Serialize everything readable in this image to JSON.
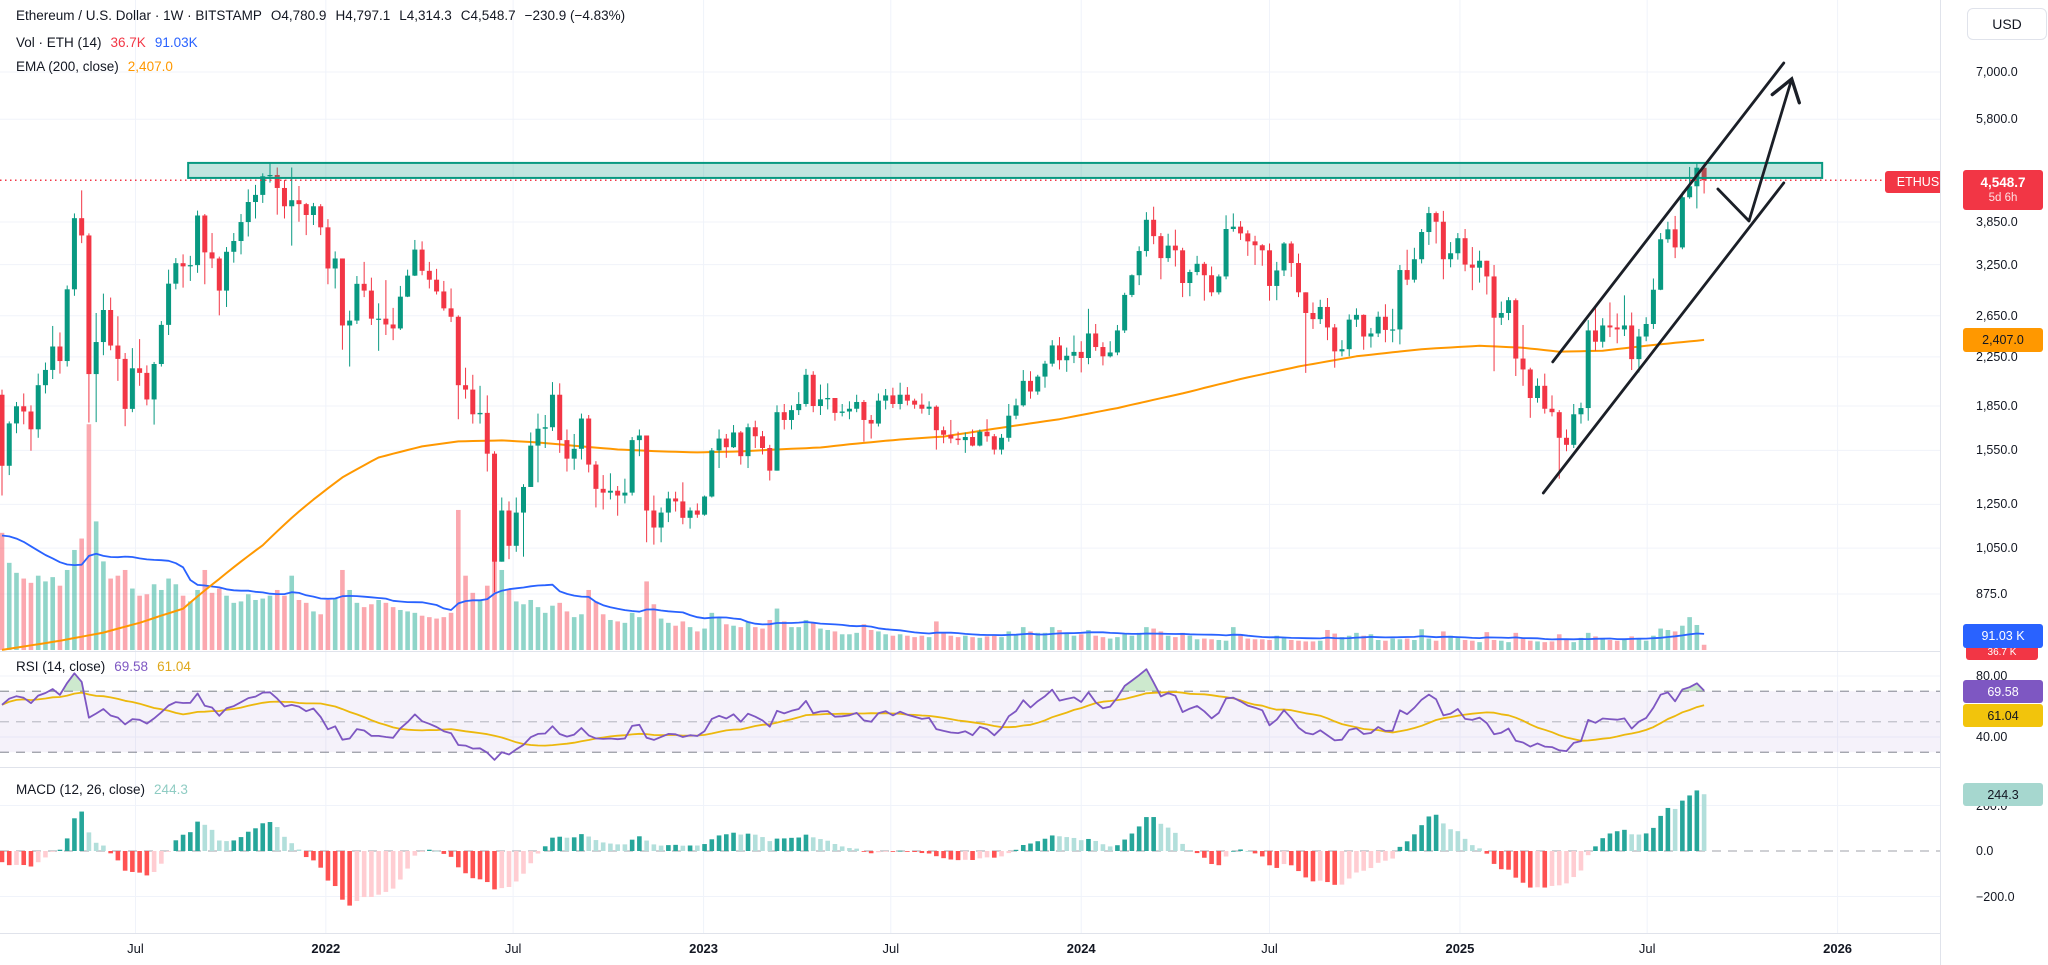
{
  "header": {
    "title": "Ethereum / U.S. Dollar",
    "interval": "1W",
    "exchange": "BITSTAMP",
    "sep": "·",
    "ohlc": {
      "o_label": "O",
      "o": "4,780.9",
      "h_label": "H",
      "h": "4,797.1",
      "l_label": "L",
      "l": "4,314.3",
      "c_label": "C",
      "c": "4,548.7"
    },
    "change": "−230.9 (−4.83%)"
  },
  "indicators": {
    "volume": {
      "label": "Vol · ETH (14)",
      "value": "36.7K",
      "ma": "91.03K"
    },
    "ema": {
      "label": "EMA (200, close)",
      "value": "2,407.0"
    },
    "rsi": {
      "label": "RSI (14, close)",
      "value": "69.58",
      "ma_value": "61.04"
    },
    "macd": {
      "label": "MACD (12, 26, close)",
      "value": "244.3"
    }
  },
  "axis": {
    "currency": "USD",
    "price_badge": {
      "symbol": "ETHUSD",
      "price": "4,548.7",
      "countdown": "5d 6h"
    },
    "ema_badge": "2,407.0",
    "vol_ma_badge": "91.03 K",
    "vol_badge": "36.7 K",
    "rsi_badge": "69.58",
    "rsi_ma_badge": "61.04",
    "macd_badge": "244.3",
    "price_ticks": [
      {
        "label": "7,000.0",
        "value": 7000
      },
      {
        "label": "5,800.0",
        "value": 5800
      },
      {
        "label": "3,850.0",
        "value": 3850
      },
      {
        "label": "3,250.0",
        "value": 3250
      },
      {
        "label": "2,650.0",
        "value": 2650
      },
      {
        "label": "2,250.0",
        "value": 2250
      },
      {
        "label": "1,850.0",
        "value": 1850
      },
      {
        "label": "1,550.0",
        "value": 1550
      },
      {
        "label": "1,250.0",
        "value": 1250
      },
      {
        "label": "1,050.0",
        "value": 1050
      },
      {
        "label": "875.0",
        "value": 875
      }
    ],
    "rsi_ticks": [
      {
        "label": "80.00",
        "value": 80
      },
      {
        "label": "40.00",
        "value": 40
      }
    ],
    "macd_ticks": [
      {
        "label": "200.0",
        "value": 200
      },
      {
        "label": "0.0",
        "value": 0
      },
      {
        "label": "−200.0",
        "value": -200
      }
    ],
    "time_ticks": [
      {
        "label": "Jul",
        "week": 18.43,
        "major": false
      },
      {
        "label": "2022",
        "week": 44.71,
        "major": true
      },
      {
        "label": "Jul",
        "week": 70.57,
        "major": false
      },
      {
        "label": "2023",
        "week": 96.86,
        "major": true
      },
      {
        "label": "Jul",
        "week": 122.71,
        "major": false
      },
      {
        "label": "2024",
        "week": 149.0,
        "major": true
      },
      {
        "label": "Jul",
        "week": 175.0,
        "major": false
      },
      {
        "label": "2025",
        "week": 201.29,
        "major": true
      },
      {
        "label": "Jul",
        "week": 227.14,
        "major": false
      },
      {
        "label": "2026",
        "week": 253.43,
        "major": true
      }
    ]
  },
  "palette": {
    "up": "#089981",
    "down": "#f23645",
    "vol_up": "rgba(34,171,148,0.5)",
    "vol_down": "rgba(247,82,95,0.5)",
    "ema": "#ff9800",
    "vol_ma": "#2962ff",
    "rsi": "#7e57c2",
    "rsi_ma": "#ecb80d",
    "rsi_band": "rgba(126,87,194,0.08)",
    "rsi_overbought_fill": "rgba(76,175,80,0.28)",
    "macd_pos_grow": "#26a69a",
    "macd_pos_fall": "#b2dfdb",
    "macd_neg_fall": "#ff5252",
    "macd_neg_grow": "#ffcdd2",
    "box_border": "#089981",
    "box_fill": "rgba(8,153,129,0.25)",
    "drawing": "#1b1f27",
    "grid": "#f0f3fa",
    "separator": "#e0e3eb",
    "dashed_level": "#80838e",
    "text": "#131722",
    "price_line": "#f23645"
  },
  "chart_data": {
    "type": "candlestick",
    "title": "Ethereum / U.S. Dollar · 1W · BITSTAMP",
    "symbol": "ETHUSD",
    "timeframe": "1W",
    "start_week": "2021-02-22",
    "weeks": 236,
    "legend_position": "top-left",
    "grid": true,
    "price_scale": "log",
    "price_axis_visible_range": [
      700,
      7400
    ],
    "panes": [
      "price+volume",
      "rsi",
      "macd"
    ],
    "first_open": 1935,
    "closes": [
      1458,
      1726,
      1848,
      1810,
      1686,
      2010,
      2136,
      2345,
      2213,
      2945,
      3910,
      3650,
      2101,
      2387,
      2712,
      2354,
      2232,
      1829,
      2150,
      2111,
      1899,
      2187,
      2556,
      3012,
      3268,
      3227,
      3243,
      3952,
      3412,
      3330,
      2930,
      3420,
      3570,
      3850,
      4170,
      4290,
      4620,
      4644,
      4410,
      4100,
      4200,
      4135,
      3960,
      4100,
      3770,
      3200,
      3330,
      2550,
      2600,
      3010,
      2930,
      2620,
      2620,
      2560,
      2520,
      2860,
      3110,
      3450,
      3170,
      3060,
      2920,
      2730,
      2640,
      2010,
      1975,
      1790,
      1800,
      1530,
      995,
      1220,
      1060,
      1210,
      1340,
      1580,
      1690,
      1700,
      1935,
      1615,
      1500,
      1560,
      1760,
      1465,
      1330,
      1310,
      1320,
      1295,
      1310,
      1615,
      1645,
      1220,
      1140,
      1210,
      1280,
      1265,
      1185,
      1220,
      1200,
      1290,
      1550,
      1625,
      1570,
      1665,
      1515,
      1700,
      1640,
      1565,
      1430,
      1805,
      1750,
      1820,
      1865,
      2095,
      1850,
      1900,
      1910,
      1800,
      1810,
      1830,
      1880,
      1750,
      1725,
      1890,
      1930,
      1865,
      1935,
      1890,
      1860,
      1830,
      1845,
      1680,
      1650,
      1625,
      1615,
      1635,
      1580,
      1670,
      1640,
      1555,
      1630,
      1780,
      1855,
      2045,
      1960,
      2080,
      2190,
      2355,
      2220,
      2260,
      2295,
      2240,
      2470,
      2340,
      2255,
      2290,
      2500,
      2880,
      3115,
      3430,
      3885,
      3640,
      3335,
      3505,
      3440,
      3020,
      3155,
      3260,
      3115,
      2910,
      3100,
      3745,
      3780,
      3680,
      3565,
      3510,
      3440,
      2985,
      3175,
      3535,
      3270,
      2910,
      2680,
      2615,
      2745,
      2530,
      2300,
      2320,
      2610,
      2660,
      2440,
      2470,
      2640,
      2505,
      2510,
      3180,
      3060,
      3320,
      3700,
      3990,
      3855,
      3320,
      3400,
      3610,
      3250,
      3210,
      3300,
      3100,
      2630,
      2680,
      2820,
      2235,
      2140,
      1910,
      2005,
      1830,
      1805,
      1630,
      1585,
      1790,
      1835,
      2500,
      2390,
      2550,
      2530,
      2510,
      2550,
      2230,
      2440,
      2565,
      2940,
      3595,
      3740,
      3480,
      4250,
      4440,
      4780.9,
      4548.7
    ],
    "highs": [
      1975,
      1740,
      1880,
      1945,
      1855,
      2105,
      2200,
      2545,
      2480,
      2990,
      3985,
      4368,
      3680,
      2680,
      2895,
      2850,
      2645,
      2285,
      2330,
      2415,
      2175,
      2205,
      2595,
      3185,
      3335,
      3385,
      3365,
      4030,
      3975,
      3685,
      3355,
      3485,
      3685,
      3975,
      4385,
      4465,
      4675,
      4868,
      4785,
      4555,
      4785,
      4445,
      4155,
      4155,
      4135,
      3895,
      3425,
      3295,
      2705,
      3105,
      3285,
      3085,
      2785,
      3055,
      2735,
      2985,
      3185,
      3585,
      3565,
      3285,
      3195,
      3045,
      2955,
      2655,
      2155,
      2095,
      2005,
      1930,
      1545,
      1285,
      1265,
      1285,
      1355,
      1665,
      1795,
      1785,
      2035,
      2025,
      1685,
      1655,
      1795,
      1785,
      1485,
      1405,
      1415,
      1345,
      1385,
      1635,
      1685,
      1625,
      1295,
      1235,
      1315,
      1315,
      1365,
      1235,
      1255,
      1295,
      1565,
      1685,
      1655,
      1715,
      1675,
      1725,
      1745,
      1675,
      1585,
      1855,
      1865,
      1855,
      1955,
      2145,
      2125,
      2015,
      2025,
      1895,
      1865,
      1885,
      1935,
      1895,
      1785,
      1945,
      1980,
      1990,
      2030,
      1995,
      1905,
      1945,
      1885,
      1855,
      1705,
      1750,
      1670,
      1665,
      1685,
      1685,
      1755,
      1655,
      1655,
      1865,
      1905,
      2135,
      2125,
      2095,
      2215,
      2405,
      2435,
      2335,
      2450,
      2395,
      2725,
      2565,
      2385,
      2395,
      2555,
      2905,
      3125,
      3495,
      4005,
      4093,
      3685,
      3675,
      3735,
      3475,
      3185,
      3365,
      3285,
      3225,
      3125,
      3955,
      3985,
      3865,
      3725,
      3645,
      3525,
      3535,
      3285,
      3555,
      3565,
      3395,
      2775,
      2795,
      2825,
      2845,
      2565,
      2405,
      2665,
      2730,
      2665,
      2525,
      2695,
      2775,
      2725,
      3245,
      3448,
      3475,
      3745,
      4090,
      4015,
      4025,
      3555,
      3685,
      3745,
      3485,
      3435,
      3285,
      3245,
      2805,
      2855,
      2840,
      2555,
      2155,
      2065,
      2105,
      1930,
      1820,
      1685,
      1865,
      1875,
      2605,
      2745,
      2625,
      2795,
      2675,
      2875,
      2685,
      2515,
      2635,
      3075,
      3685,
      3855,
      3945,
      4345,
      4795,
      4885,
      4797.1
    ],
    "lows": [
      1295,
      1405,
      1660,
      1720,
      1548,
      1630,
      1945,
      2060,
      2105,
      2165,
      2870,
      3540,
      1732,
      1735,
      2265,
      2310,
      2045,
      1707,
      1805,
      2005,
      1855,
      1718,
      2165,
      2455,
      2945,
      2965,
      3045,
      3145,
      3005,
      3205,
      2655,
      2745,
      3275,
      3385,
      3635,
      3905,
      4155,
      4505,
      3965,
      3905,
      3505,
      3855,
      3655,
      3805,
      3655,
      3005,
      2955,
      2315,
      2165,
      2565,
      2855,
      2555,
      2305,
      2455,
      2405,
      2505,
      2855,
      3105,
      3115,
      2955,
      2885,
      2705,
      2585,
      1755,
      1905,
      1725,
      1725,
      1425,
      881,
      1015,
      1005,
      1035,
      1015,
      1355,
      1365,
      1565,
      1675,
      1535,
      1425,
      1435,
      1495,
      1420,
      1235,
      1225,
      1275,
      1195,
      1255,
      1295,
      1515,
      1075,
      1065,
      1075,
      1165,
      1215,
      1155,
      1135,
      1185,
      1195,
      1285,
      1445,
      1505,
      1565,
      1465,
      1445,
      1565,
      1525,
      1375,
      1435,
      1685,
      1685,
      1785,
      1845,
      1805,
      1785,
      1825,
      1745,
      1775,
      1755,
      1805,
      1605,
      1625,
      1705,
      1825,
      1835,
      1825,
      1855,
      1830,
      1795,
      1785,
      1555,
      1595,
      1595,
      1585,
      1535,
      1575,
      1575,
      1605,
      1525,
      1525,
      1605,
      1755,
      1845,
      1905,
      1935,
      1990,
      2165,
      2140,
      2120,
      2195,
      2115,
      2185,
      2305,
      2175,
      2245,
      2265,
      2475,
      2855,
      2995,
      3355,
      3525,
      3065,
      3285,
      3225,
      2855,
      2865,
      3115,
      2815,
      2865,
      2885,
      3065,
      3705,
      3585,
      3365,
      3245,
      3235,
      2815,
      2820,
      3105,
      3095,
      2855,
      2111,
      2515,
      2565,
      2405,
      2155,
      2255,
      2255,
      2535,
      2315,
      2335,
      2435,
      2385,
      2385,
      2365,
      2995,
      3025,
      3265,
      3515,
      3535,
      3065,
      3215,
      3315,
      3165,
      2935,
      3025,
      2885,
      2125,
      2555,
      2605,
      2085,
      2005,
      1765,
      1875,
      1795,
      1775,
      1385,
      1545,
      1565,
      1725,
      1745,
      2305,
      2335,
      2435,
      2375,
      2445,
      2135,
      2115,
      2395,
      2515,
      2935,
      3545,
      3335,
      3455,
      4225,
      4065,
      4314.3
    ],
    "volumes_k": [
      820,
      610,
      540,
      500,
      470,
      520,
      480,
      510,
      450,
      560,
      700,
      780,
      1580,
      900,
      620,
      500,
      520,
      560,
      430,
      380,
      390,
      460,
      420,
      500,
      460,
      380,
      340,
      420,
      560,
      400,
      430,
      380,
      330,
      340,
      390,
      350,
      360,
      380,
      420,
      380,
      520,
      350,
      330,
      270,
      250,
      350,
      360,
      560,
      420,
      330,
      300,
      320,
      350,
      330,
      300,
      280,
      270,
      260,
      240,
      230,
      220,
      230,
      260,
      980,
      520,
      400,
      350,
      450,
      840,
      560,
      420,
      340,
      320,
      350,
      300,
      260,
      310,
      330,
      270,
      230,
      250,
      420,
      340,
      250,
      210,
      200,
      190,
      260,
      230,
      480,
      320,
      220,
      190,
      170,
      200,
      160,
      130,
      150,
      260,
      230,
      180,
      170,
      160,
      200,
      160,
      150,
      210,
      290,
      200,
      160,
      160,
      210,
      190,
      150,
      140,
      130,
      110,
      110,
      120,
      180,
      140,
      130,
      110,
      100,
      110,
      100,
      90,
      100,
      90,
      200,
      120,
      100,
      90,
      100,
      90,
      85,
      95,
      100,
      90,
      130,
      110,
      160,
      130,
      120,
      120,
      160,
      140,
      120,
      100,
      110,
      140,
      100,
      90,
      80,
      90,
      110,
      100,
      120,
      160,
      150,
      130,
      100,
      90,
      120,
      100,
      75,
      80,
      75,
      70,
      65,
      160,
      110,
      80,
      75,
      75,
      70,
      100,
      85,
      70,
      65,
      60,
      60,
      65,
      140,
      115,
      90,
      100,
      120,
      100,
      110,
      70,
      65,
      80,
      75,
      80,
      70,
      145,
      80,
      65,
      130,
      100,
      90,
      70,
      65,
      55,
      125,
      70,
      65,
      55,
      120,
      80,
      65,
      60,
      55,
      60,
      110,
      70,
      55,
      85,
      120,
      95,
      80,
      70,
      65,
      70,
      95,
      80,
      65,
      100,
      150,
      140,
      130,
      170,
      230,
      175,
      36.7
    ],
    "ema200_anchors": [
      [
        0,
        700
      ],
      [
        8,
        726
      ],
      [
        14,
        750
      ],
      [
        19,
        780
      ],
      [
        25,
        825
      ],
      [
        30,
        929
      ],
      [
        36,
        1062
      ],
      [
        41,
        1215
      ],
      [
        47,
        1392
      ],
      [
        52,
        1507
      ],
      [
        58,
        1575
      ],
      [
        63,
        1607
      ],
      [
        69,
        1613
      ],
      [
        74,
        1600
      ],
      [
        80,
        1575
      ],
      [
        85,
        1556
      ],
      [
        91,
        1544
      ],
      [
        96,
        1538
      ],
      [
        102,
        1544
      ],
      [
        107,
        1556
      ],
      [
        113,
        1568
      ],
      [
        118,
        1593
      ],
      [
        124,
        1619
      ],
      [
        130,
        1638
      ],
      [
        138,
        1697
      ],
      [
        146,
        1755
      ],
      [
        154,
        1835
      ],
      [
        163,
        1945
      ],
      [
        171,
        2060
      ],
      [
        179,
        2165
      ],
      [
        187,
        2255
      ],
      [
        196,
        2320
      ],
      [
        204,
        2352
      ],
      [
        210,
        2333
      ],
      [
        215,
        2297
      ],
      [
        221,
        2306
      ],
      [
        227,
        2352
      ],
      [
        235,
        2407
      ]
    ],
    "rsi_settings": {
      "length": 14,
      "ma_length": 14,
      "levels": [
        70,
        50,
        30
      ],
      "band": [
        30,
        70
      ]
    },
    "macd_settings": {
      "fast": 12,
      "slow": 26,
      "signal": 9,
      "display": "histogram"
    },
    "drawings": {
      "resistance_box": {
        "from_week": 25.7,
        "to_week": 251.3,
        "price_top": 4873,
        "price_bottom": 4590
      },
      "current_price_line": {
        "price": 4548.7,
        "style": "dotted"
      },
      "trend_lines": [
        {
          "from": [
            214.1,
            2206
          ],
          "to": [
            246.0,
            7256
          ]
        },
        {
          "from": [
            212.8,
            1308
          ],
          "to": [
            246.0,
            4500
          ]
        }
      ],
      "projection_arrow": {
        "points": [
          [
            236.9,
            4392
          ],
          [
            241.2,
            3867
          ],
          [
            247.1,
            6808
          ]
        ],
        "arrowhead": true
      }
    }
  }
}
